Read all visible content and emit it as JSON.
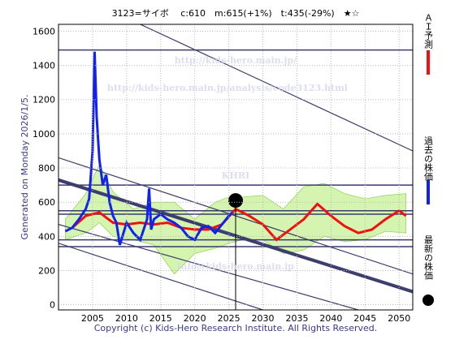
{
  "chart_data": {
    "type": "line",
    "title": "3123=サイボ　 c:610　m:615(+1%)　t:435(-29%)　★☆",
    "side_note": "Generated on Monday 2026/1/5.",
    "copyright": "Copyright (c) Kids-Hero Research Institute. All Rights Reserved.",
    "watermarks": [
      "http://kids-hero.main.jp/",
      "http://kids-hero.main.jp/analysis/code3123.html",
      "KHRI",
      "info@kids-hero.main.jp"
    ],
    "xlim": [
      2000,
      2052
    ],
    "ylim": [
      -30,
      1640
    ],
    "xticks": [
      2005,
      2010,
      2015,
      2020,
      2025,
      2030,
      2035,
      2040,
      2045,
      2050
    ],
    "yticks": [
      0,
      200,
      400,
      600,
      800,
      1000,
      1200,
      1400,
      1600
    ],
    "grid": true,
    "band": {
      "color": "#b8ec7a",
      "x": [
        2001,
        2004,
        2006,
        2008,
        2011,
        2014,
        2017,
        2020,
        2023,
        2025,
        2027,
        2030,
        2033,
        2036,
        2039,
        2042,
        2045,
        2048,
        2051
      ],
      "upper": [
        500,
        650,
        820,
        660,
        560,
        600,
        600,
        500,
        600,
        630,
        630,
        640,
        560,
        690,
        710,
        650,
        620,
        640,
        650
      ],
      "lower": [
        380,
        420,
        480,
        400,
        380,
        350,
        180,
        300,
        330,
        360,
        380,
        380,
        300,
        320,
        400,
        370,
        380,
        430,
        420
      ]
    },
    "h_lines": {
      "color": "#3b3b6e",
      "values": [
        1490,
        700,
        550,
        530,
        380,
        340
      ]
    },
    "trend_lines": {
      "color": "#3b3b6e",
      "lines": [
        [
          [
            2012,
            1640
          ],
          [
            2052,
            900
          ]
        ],
        [
          [
            2000,
            860
          ],
          [
            2052,
            180
          ]
        ],
        [
          [
            2000,
            737
          ],
          [
            2052,
            84
          ]
        ],
        [
          [
            2000,
            727
          ],
          [
            2052,
            74
          ]
        ],
        [
          [
            2000,
            470
          ],
          [
            2044,
            -30
          ]
        ],
        [
          [
            2000,
            360
          ],
          [
            2030,
            -30
          ]
        ]
      ]
    },
    "series": [
      {
        "name": "ＡＩ予測",
        "color": "#ee1111",
        "x": [
          2002,
          2004,
          2006,
          2008,
          2010,
          2012,
          2014,
          2016,
          2018,
          2020,
          2022,
          2024,
          2026,
          2028,
          2030,
          2032,
          2034,
          2036,
          2038,
          2040,
          2042,
          2044,
          2046,
          2048,
          2050,
          2051
        ],
        "values": [
          450,
          520,
          540,
          480,
          470,
          480,
          470,
          480,
          450,
          440,
          440,
          470,
          560,
          520,
          470,
          380,
          440,
          500,
          590,
          520,
          460,
          420,
          440,
          500,
          550,
          520
        ]
      },
      {
        "name": "過去の株価",
        "color": "#1122ee",
        "x": [
          2001,
          2002,
          2003,
          2004,
          2004.5,
          2005,
          2005.3,
          2005.6,
          2006,
          2006.5,
          2007,
          2007.5,
          2008,
          2008.5,
          2009,
          2010,
          2011,
          2012,
          2013,
          2013.3,
          2013.6,
          2014,
          2015,
          2016,
          2017,
          2018,
          2019,
          2020,
          2021,
          2022,
          2023,
          2024,
          2025,
          2025.5
        ],
        "values": [
          430,
          450,
          500,
          560,
          620,
          900,
          1480,
          1100,
          850,
          700,
          760,
          600,
          520,
          480,
          350,
          480,
          420,
          380,
          500,
          680,
          440,
          500,
          530,
          500,
          480,
          450,
          400,
          380,
          450,
          460,
          420,
          470,
          520,
          540
        ]
      },
      {
        "name": "最新の株価",
        "color": "#000000",
        "x": [
          2026
        ],
        "values": [
          610
        ]
      }
    ]
  }
}
